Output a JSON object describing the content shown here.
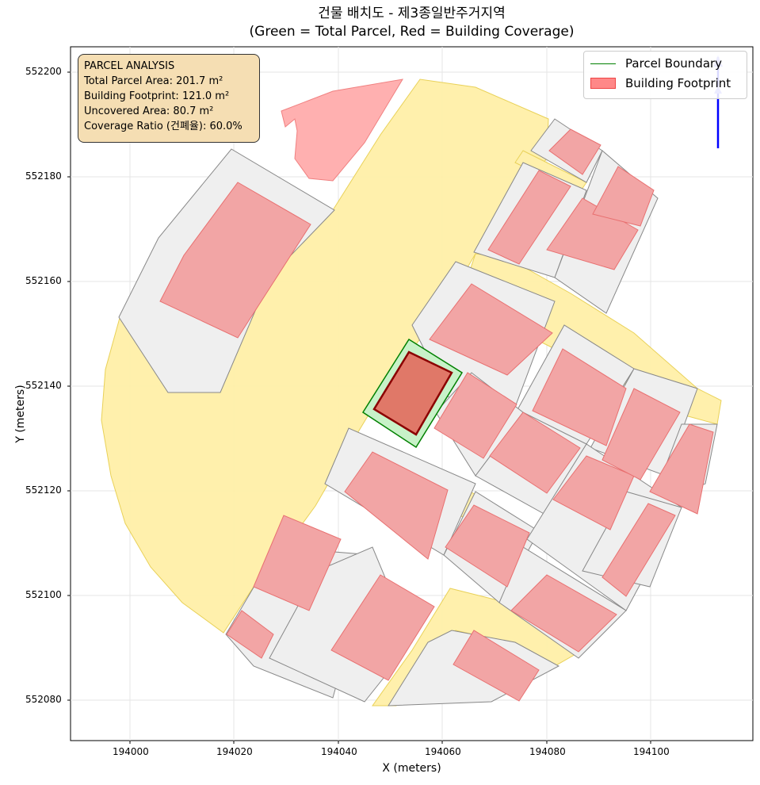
{
  "title_line1": "건물 배치도 - 제3종일반주거지역",
  "title_line2": "(Green = Total Parcel, Red = Building Coverage)",
  "x_label": "X (meters)",
  "y_label": "Y (meters)",
  "x_ticks": [
    "194000",
    "194020",
    "194040",
    "194060",
    "194080",
    "194100"
  ],
  "y_ticks": [
    "552200",
    "552180",
    "552160",
    "552140",
    "552120",
    "552100",
    "552080"
  ],
  "info": {
    "heading": "PARCEL ANALYSIS",
    "total": "Total Parcel Area: 201.7 m²",
    "footprint": "Building Footprint: 121.0 m²",
    "uncovered": "Uncovered Area: 80.7 m²",
    "ratio": "Coverage Ratio (건폐율): 60.0%"
  },
  "legend": {
    "parcel": "Parcel Boundary",
    "building": "Building Footprint"
  },
  "colors": {
    "road": "#fff0a8",
    "parcel_fill": "#efefef",
    "building": "#f2a5a5",
    "target_parcel": "#c8f2c8",
    "target_building": "#e07868",
    "north_arrow": "#0000ff"
  }
}
